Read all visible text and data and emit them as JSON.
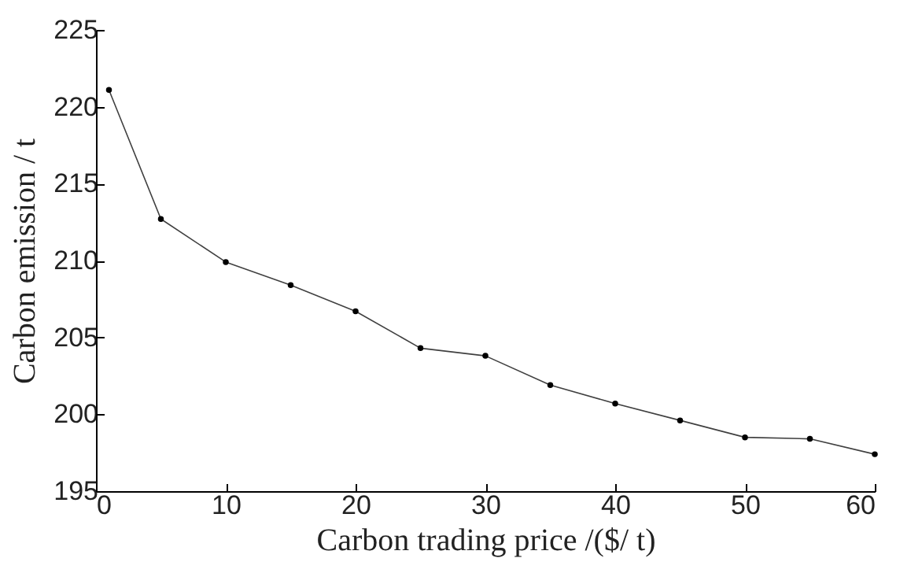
{
  "chart_data": {
    "type": "line",
    "xlabel": "Carbon trading price /($/ t)",
    "ylabel": "Carbon emission / t",
    "x": [
      1,
      5,
      10,
      15,
      20,
      25,
      30,
      35,
      40,
      45,
      50,
      55,
      60
    ],
    "series": [
      {
        "color": "#404040",
        "values": [
          221.1,
          212.7,
          209.9,
          208.4,
          206.7,
          204.3,
          203.8,
          201.9,
          200.7,
          199.6,
          198.5,
          198.4,
          197.4
        ]
      }
    ],
    "xlim": [
      0,
      60
    ],
    "xticks": [
      0,
      10,
      20,
      30,
      40,
      50,
      60
    ],
    "ylim": [
      195,
      225
    ],
    "yticks": [
      195,
      200,
      205,
      210,
      215,
      220,
      225
    ],
    "grid": false,
    "marker": "circle",
    "line_style": "solid"
  }
}
